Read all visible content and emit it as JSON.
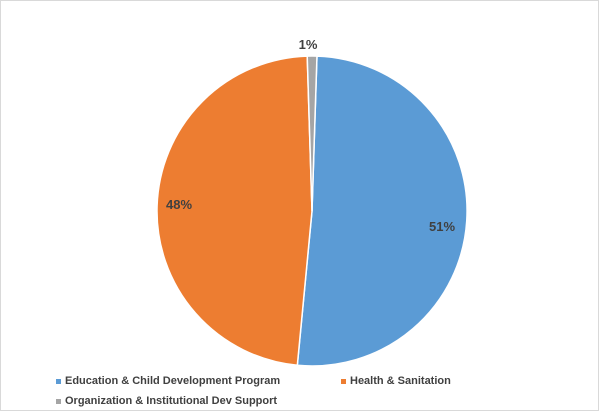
{
  "chart_data": {
    "type": "pie",
    "title": "",
    "slices": [
      {
        "label": "Education & Child Development Program",
        "value": 51,
        "display": "51%",
        "color": "#5b9bd5"
      },
      {
        "label": "Health & Sanitation",
        "value": 48,
        "display": "48%",
        "color": "#ed7d31"
      },
      {
        "label": "Organization & Institutional Dev Support",
        "value": 1,
        "display": "1%",
        "color": "#a5a5a5"
      }
    ],
    "legend_placement": "bottom"
  }
}
